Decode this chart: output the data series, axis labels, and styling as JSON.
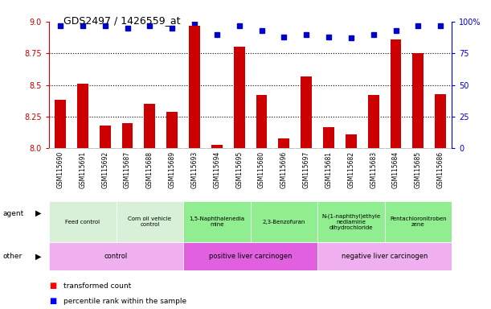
{
  "title": "GDS2497 / 1426559_at",
  "samples": [
    "GSM115690",
    "GSM115691",
    "GSM115692",
    "GSM115687",
    "GSM115688",
    "GSM115689",
    "GSM115693",
    "GSM115694",
    "GSM115695",
    "GSM115680",
    "GSM115696",
    "GSM115697",
    "GSM115681",
    "GSM115682",
    "GSM115683",
    "GSM115684",
    "GSM115685",
    "GSM115686"
  ],
  "red_values": [
    8.38,
    8.51,
    8.18,
    8.2,
    8.35,
    8.29,
    8.97,
    8.03,
    8.8,
    8.42,
    8.08,
    8.57,
    8.17,
    8.11,
    8.42,
    8.86,
    8.75,
    8.43
  ],
  "blue_values": [
    97,
    97,
    97,
    95,
    97,
    95,
    99,
    90,
    97,
    93,
    88,
    90,
    88,
    87,
    90,
    93,
    97,
    97
  ],
  "ylim_left": [
    8.0,
    9.0
  ],
  "ylim_right": [
    0,
    100
  ],
  "yticks_left": [
    8.0,
    8.25,
    8.5,
    8.75,
    9.0
  ],
  "yticks_right": [
    0,
    25,
    50,
    75,
    100
  ],
  "agent_groups": [
    {
      "label": "Feed control",
      "start": 0,
      "end": 3,
      "color": "#d8f0d8"
    },
    {
      "label": "Corn oil vehicle\ncontrol",
      "start": 3,
      "end": 6,
      "color": "#d8f0d8"
    },
    {
      "label": "1,5-Naphthalenedia\nmine",
      "start": 6,
      "end": 9,
      "color": "#90ee90"
    },
    {
      "label": "2,3-Benzofuran",
      "start": 9,
      "end": 12,
      "color": "#90ee90"
    },
    {
      "label": "N-(1-naphthyl)ethyle\nnediamine\ndihydrochloride",
      "start": 12,
      "end": 15,
      "color": "#90ee90"
    },
    {
      "label": "Pentachloronitroben\nzene",
      "start": 15,
      "end": 18,
      "color": "#90ee90"
    }
  ],
  "other_groups": [
    {
      "label": "control",
      "start": 0,
      "end": 6,
      "color": "#f0b0f0"
    },
    {
      "label": "positive liver carcinogen",
      "start": 6,
      "end": 12,
      "color": "#e060e0"
    },
    {
      "label": "negative liver carcinogen",
      "start": 12,
      "end": 18,
      "color": "#f0b0f0"
    }
  ],
  "bar_color": "#cc0000",
  "dot_color": "#0000cc",
  "left_axis_color": "#cc0000",
  "right_axis_color": "#0000cc",
  "sample_band_color": "#cccccc",
  "grid_dotted_color": "black"
}
